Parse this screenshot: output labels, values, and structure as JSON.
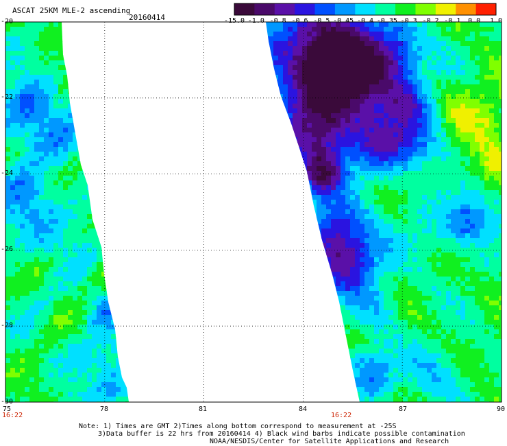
{
  "header": {
    "title": "ASCAT 25KM MLE-2 ascending",
    "date": "20160414"
  },
  "colorbar": {
    "labels": [
      "-15.0",
      "-1.0",
      "-0.8",
      "-0.6",
      "-0.5",
      "-0.45",
      "-0.4",
      "-0.35",
      "-0.3",
      "-0.2",
      "-0.1",
      "0.0",
      "1.0"
    ],
    "colors": [
      "#3a0a3a",
      "#4a0a6a",
      "#5a10a8",
      "#2a14e0",
      "#0050ff",
      "#0098ff",
      "#00e0ff",
      "#00ffa0",
      "#10f020",
      "#80ff00",
      "#f0f000",
      "#ff9000",
      "#ff2000"
    ]
  },
  "axes": {
    "x_ticks": [
      "75",
      "78",
      "81",
      "84",
      "87",
      "90"
    ],
    "y_ticks": [
      "-20",
      "-22",
      "-24",
      "-26",
      "-28",
      "-30"
    ],
    "xlim": [
      75,
      90
    ],
    "ylim": [
      -30,
      -20
    ]
  },
  "times": {
    "pass1": "16:22",
    "pass2": "16:22"
  },
  "notes": {
    "line1": "Note: 1) Times are GMT 2)Times along bottom correspond to measurement at -25S",
    "line2": "3)Data buffer is 22 hrs from 20160414 4) Black wind barbs indicate possible contamination",
    "line3": "NOAA/NESDIS/Center for Satellite Applications and Research"
  }
}
